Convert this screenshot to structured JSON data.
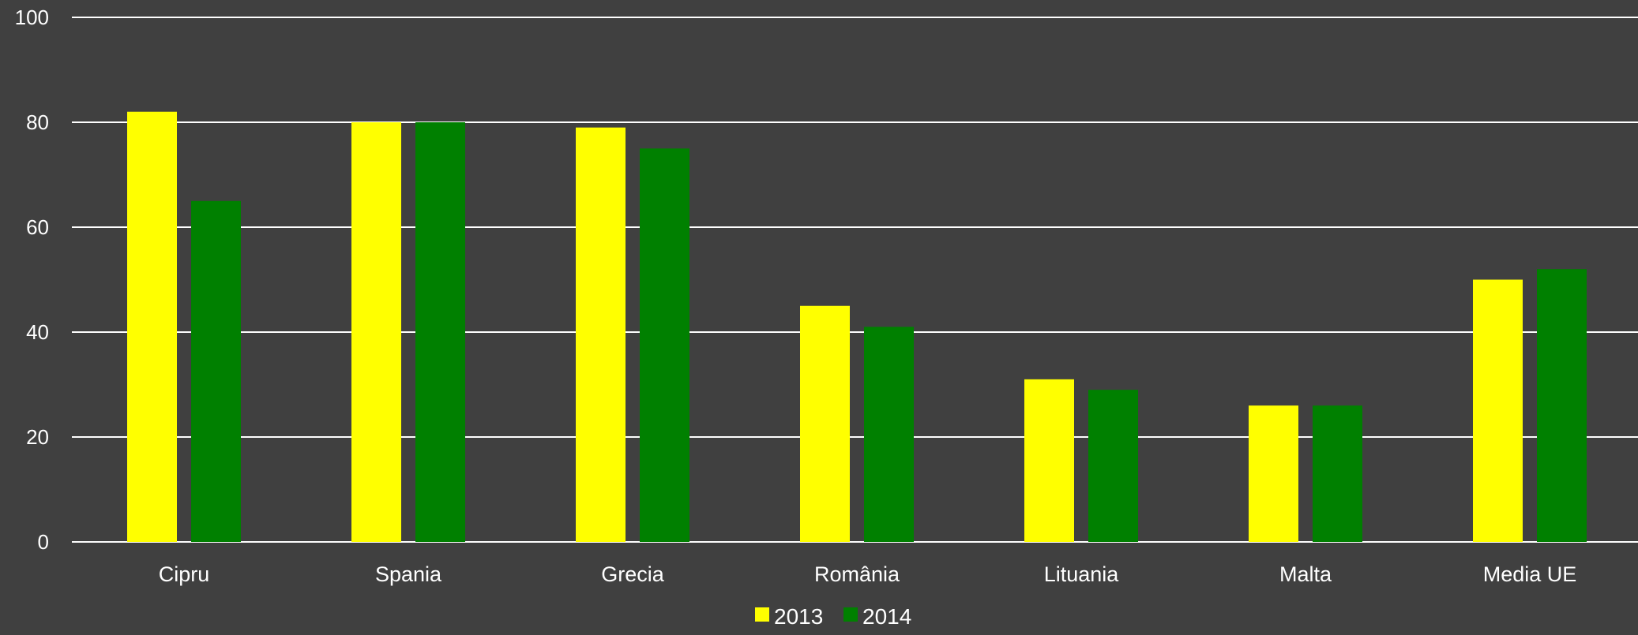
{
  "chart_data": {
    "type": "bar",
    "categories": [
      "Cipru",
      "Spania",
      "Grecia",
      "România",
      "Lituania",
      "Malta",
      "Media UE"
    ],
    "series": [
      {
        "name": "2013",
        "values": [
          82,
          80,
          79,
          45,
          31,
          26,
          50
        ],
        "color": "#FFFF00"
      },
      {
        "name": "2014",
        "values": [
          65,
          80,
          75,
          41,
          29,
          26,
          52
        ],
        "color": "#008000"
      }
    ],
    "yticks": [
      "0",
      "20",
      "40",
      "60",
      "80",
      "100"
    ],
    "ylim": [
      0,
      100
    ],
    "grid": true,
    "legend_position": "bottom-center",
    "background": "#404040",
    "gridline_color": "#ffffff"
  }
}
